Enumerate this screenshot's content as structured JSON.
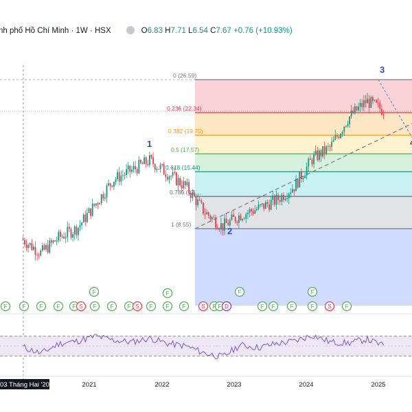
{
  "legend": {
    "title": "nh phố Hồ Chí Minh · 1W · HSX",
    "open_label": "O",
    "open": "6.83",
    "high_label": "H",
    "high": "7.71",
    "low_label": "L",
    "low": "6.54",
    "close_label": "C",
    "close": "7.67",
    "change": "+0.76 (+10.93%)"
  },
  "colors": {
    "up": "#089981",
    "down": "#f23645",
    "fib_0": "#f9d3d5",
    "fib_236": "#fde6c4",
    "fib_382": "#fff3cf",
    "fib_5": "#d6f2de",
    "fib_618": "#c9f1f1",
    "fib_786": "#e2e3e6",
    "fib_1_below": "#cfdcff",
    "wave": "#2a4fb8"
  },
  "chart_data": [
    {
      "type": "candlestick",
      "title": "nh phố Hồ Chí Minh · 1W · HSX",
      "x_tick_labels": [
        "03 Tháng Hai '20",
        "2021",
        "2022",
        "2023",
        "2024",
        "2025"
      ],
      "last_bar": {
        "open": 6.83,
        "high": 7.71,
        "low": 6.54,
        "close": 7.67,
        "change": 0.76,
        "change_pct": 10.93
      },
      "x": [
        "2020-02",
        "2020-05",
        "2020-08",
        "2020-11",
        "2021-02",
        "2021-05",
        "2021-08",
        "2021-11",
        "2022-02",
        "2022-05",
        "2022-08",
        "2022-11",
        "2023-02",
        "2023-05",
        "2023-08",
        "2023-11",
        "2024-02",
        "2024-05",
        "2024-08",
        "2024-11",
        "2025-02"
      ],
      "close": [
        7.2,
        5.6,
        7.5,
        8.6,
        11.5,
        14.5,
        15.6,
        16.8,
        15.2,
        13.6,
        10.6,
        8.8,
        10.2,
        11.0,
        12.0,
        13.7,
        17.0,
        18.4,
        22.0,
        24.0,
        22.8
      ],
      "fibonacci": [
        {
          "label": "0 (26.59)",
          "level": 0,
          "price": 26.59
        },
        {
          "label": "0.236 (22.34)",
          "level": 0.236,
          "price": 22.34
        },
        {
          "label": "0.382 (19.70)",
          "level": 0.382,
          "price": 19.7
        },
        {
          "label": "0.5 (17.57)",
          "level": 0.5,
          "price": 17.57
        },
        {
          "label": "0.618 (15.44)",
          "level": 0.618,
          "price": 15.44
        },
        {
          "label": "0.786 (12.…",
          "level": 0.786
        },
        {
          "label": "1 (8.55)",
          "level": 1,
          "price": 8.55
        }
      ],
      "wave_labels": [
        "1",
        "2",
        "3",
        "4"
      ],
      "event_markers": [
        "F",
        "F",
        "F",
        "F",
        "F",
        "S",
        "F",
        "F",
        "F",
        "S",
        "F",
        "F",
        "F",
        "S",
        "F",
        "F",
        "D",
        "F",
        "F",
        "F",
        "F",
        "S",
        "F"
      ]
    },
    {
      "type": "line",
      "title": "",
      "x": [
        "2020-02",
        "2020-05",
        "2020-08",
        "2020-11",
        "2021-02",
        "2021-05",
        "2021-08",
        "2021-11",
        "2022-02",
        "2022-05",
        "2022-08",
        "2022-11",
        "2023-02",
        "2023-05",
        "2023-08",
        "2023-11",
        "2024-02",
        "2024-05",
        "2024-08",
        "2024-11",
        "2025-02"
      ],
      "values": [
        48,
        35,
        55,
        60,
        70,
        62,
        58,
        66,
        55,
        50,
        36,
        28,
        52,
        47,
        55,
        60,
        72,
        58,
        56,
        64,
        50
      ],
      "ylim": [
        0,
        100
      ],
      "bands": [
        30,
        70
      ]
    }
  ]
}
